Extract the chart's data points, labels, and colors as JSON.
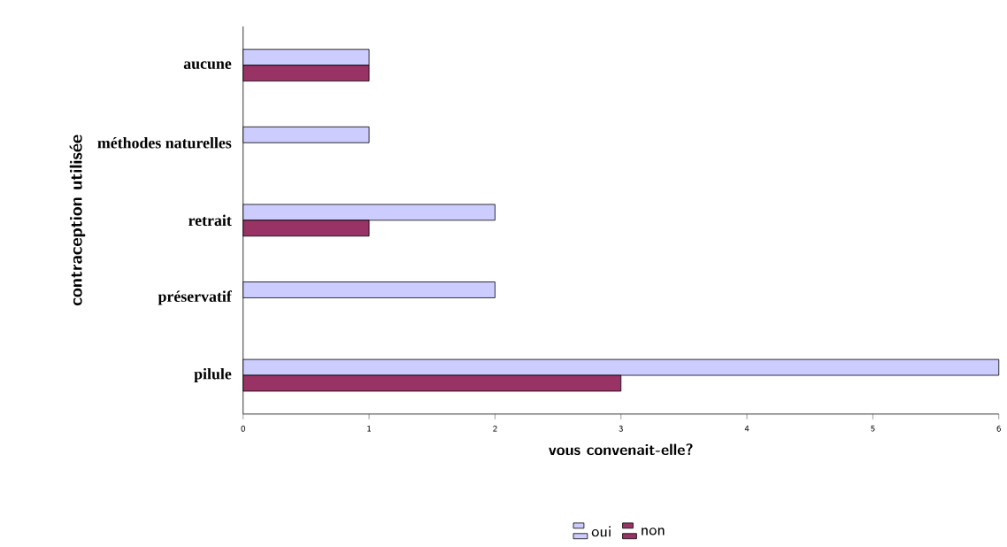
{
  "chart_data": {
    "type": "bar",
    "orientation": "horizontal",
    "xlabel": "vous convenait-elle?",
    "ylabel": "contraception utilisée",
    "categories": [
      "aucune",
      "méthodes naturelles",
      "retrait",
      "préservatif",
      "pilule"
    ],
    "series": [
      {
        "name": "oui",
        "color": "#ccccff",
        "values": [
          1,
          1,
          2,
          2,
          6
        ]
      },
      {
        "name": "non",
        "color": "#993366",
        "values": [
          1,
          null,
          1,
          null,
          3
        ]
      }
    ],
    "xlim": [
      0,
      6
    ],
    "xticks": [
      0,
      1,
      2,
      3,
      4,
      5,
      6
    ],
    "grid": false,
    "legend": "bottom"
  }
}
